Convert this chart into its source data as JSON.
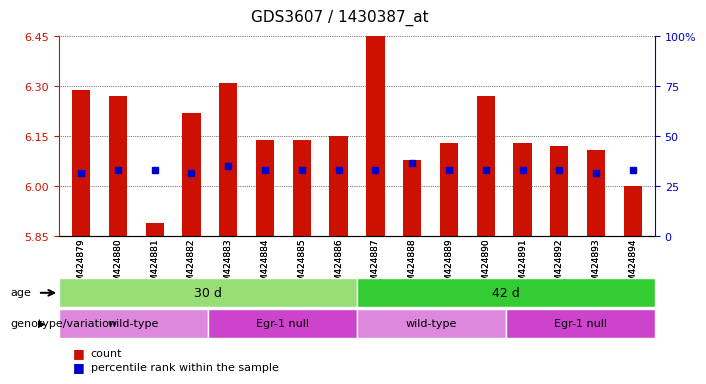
{
  "title": "GDS3607 / 1430387_at",
  "samples": [
    "GSM424879",
    "GSM424880",
    "GSM424881",
    "GSM424882",
    "GSM424883",
    "GSM424884",
    "GSM424885",
    "GSM424886",
    "GSM424887",
    "GSM424888",
    "GSM424889",
    "GSM424890",
    "GSM424891",
    "GSM424892",
    "GSM424893",
    "GSM424894"
  ],
  "count_values": [
    6.29,
    6.27,
    5.89,
    6.22,
    6.31,
    6.14,
    6.14,
    6.15,
    6.45,
    6.08,
    6.13,
    6.27,
    6.13,
    6.12,
    6.11,
    6.0
  ],
  "percentile_values": [
    6.04,
    6.05,
    6.05,
    6.04,
    6.06,
    6.05,
    6.05,
    6.05,
    6.05,
    6.07,
    6.05,
    6.05,
    6.05,
    6.05,
    6.04,
    6.05
  ],
  "ymin": 5.85,
  "ymax": 6.45,
  "yticks": [
    5.85,
    6.0,
    6.15,
    6.3,
    6.45
  ],
  "y2ticks": [
    0,
    25,
    50,
    75,
    100
  ],
  "y2labels": [
    "0",
    "25",
    "50",
    "75",
    "100%"
  ],
  "bar_color": "#CC1100",
  "percentile_color": "#0000CC",
  "age_groups": [
    {
      "label": "30 d",
      "start": 0,
      "end": 8,
      "color": "#99DD77"
    },
    {
      "label": "42 d",
      "start": 8,
      "end": 16,
      "color": "#33CC33"
    }
  ],
  "genotype_groups": [
    {
      "label": "wild-type",
      "start": 0,
      "end": 4,
      "color": "#DD88DD"
    },
    {
      "label": "Egr-1 null",
      "start": 4,
      "end": 8,
      "color": "#CC44CC"
    },
    {
      "label": "wild-type",
      "start": 8,
      "end": 12,
      "color": "#DD88DD"
    },
    {
      "label": "Egr-1 null",
      "start": 12,
      "end": 16,
      "color": "#CC44CC"
    }
  ],
  "legend_count_color": "#CC1100",
  "legend_percentile_color": "#0000CC",
  "tick_color_left": "#CC1100",
  "tick_color_right": "#0000CC",
  "bar_width": 0.5,
  "age_row_label": "age",
  "genotype_row_label": "genotype/variation"
}
